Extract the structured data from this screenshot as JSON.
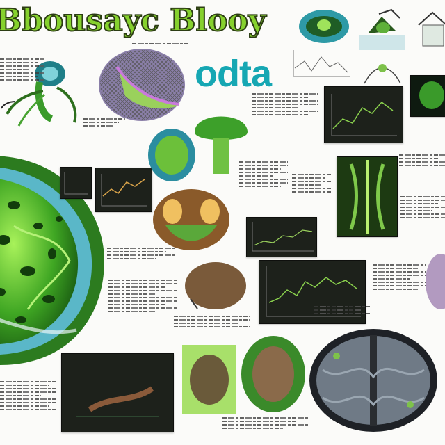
{
  "poster": {
    "title": "Bbousayc Blooy",
    "subtitle": "odta"
  },
  "colors": {
    "accent_green": "#86d12e",
    "accent_teal": "#16a7b3",
    "panel_dark": "#1d211b"
  },
  "icons": [
    "cell-cross-section-icon",
    "frog-head-icon",
    "mushroom-organism-icon",
    "nerve-specimen-icon"
  ]
}
